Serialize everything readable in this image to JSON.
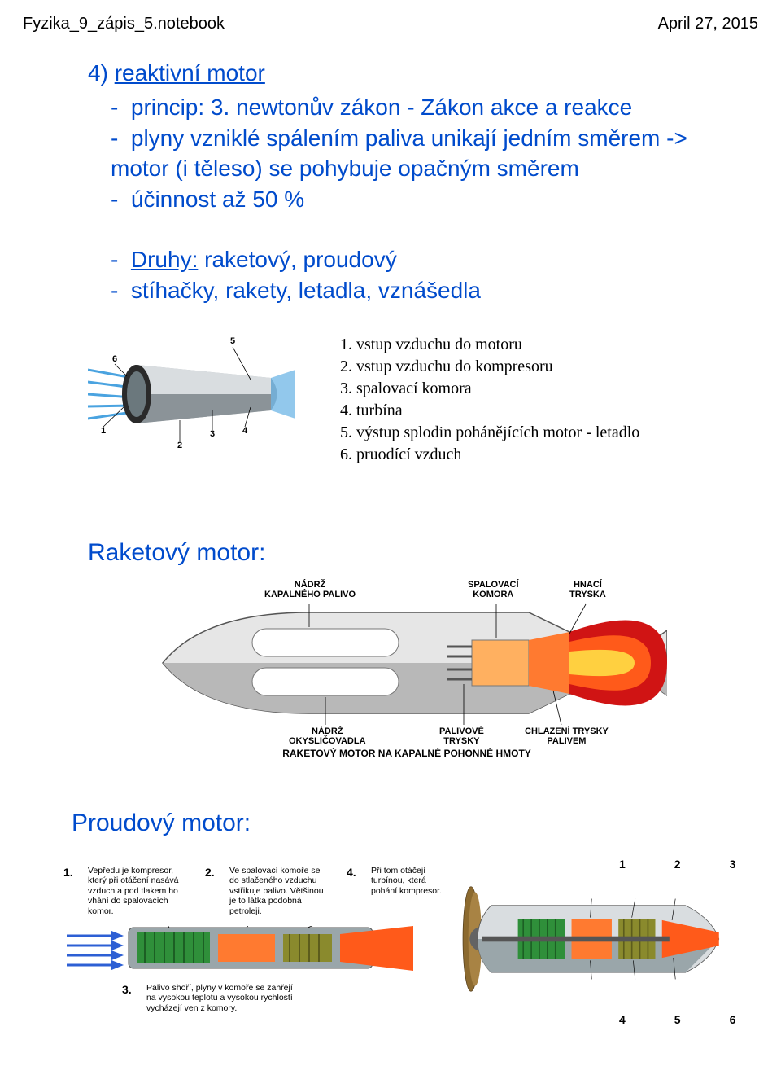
{
  "header": {
    "filename": "Fyzika_9_zápis_5.notebook",
    "date": "April 27, 2015"
  },
  "section": {
    "number": "4)",
    "title": "reaktivní motor",
    "bullets": {
      "b1a": "princip: 3. newtonův zákon - Zákon akce a reakce",
      "b2": "plyny vzniklé spálením paliva unikají jedním směrem -> motor (i těleso) se pohybuje opačným směrem",
      "b3": "účinnost až 50 %"
    },
    "types": {
      "label": "Druhy:",
      "values": "raketový, proudový",
      "examples": "stíhačky, rakety, letadla, vznášedla"
    }
  },
  "engine_legend": {
    "l1": "1. vstup vzduchu do motoru",
    "l2": "2. vstup vzduchu do kompresoru",
    "l3": "3. spalovací komora",
    "l4": "4. turbína",
    "l5": "5. výstup splodin pohánějících motor - letadlo",
    "l6": "6. pruodící vzduch"
  },
  "rocket": {
    "heading": "Raketový motor:",
    "labels": {
      "fuel_tank": "NÁDRŽ\nKAPALNÉHO PALIVO",
      "combustion": "SPALOVACÍ\nKOMORA",
      "nozzle": "HNACÍ\nTRYSKA",
      "oxidizer": "NÁDRŽ\nOKYSLIČOVADLA",
      "fuel_nozzles": "PALIVOVÉ\nTRYSKY",
      "cooling": "CHLAZENÍ TRYSKY\nPALIVEM"
    },
    "caption": "RAKETOVÝ MOTOR NA KAPALNÉ POHONNÉ HMOTY"
  },
  "jet": {
    "heading": "Proudový motor:",
    "steps": {
      "s1": {
        "n": "1.",
        "t": "Vepředu je kompresor, který při otáčení nasává vzduch a pod tlakem ho vhání do spalovacích komor."
      },
      "s2": {
        "n": "2.",
        "t": "Ve spalovací komoře se do stlačeného vzduchu vstřikuje palivo. Většinou je to látka podobná petroleji."
      },
      "s3": {
        "n": "3.",
        "t": "Palivo shoří, plyny v komoře se zahřejí na vysokou teplotu a vysokou rychlostí vycházejí ven z komory."
      },
      "s4": {
        "n": "4.",
        "t": "Při tom otáčejí turbínou, která pohání kompresor."
      }
    },
    "top_nums": {
      "a": "1",
      "b": "2",
      "c": "3"
    },
    "bottom_nums": {
      "a": "4",
      "b": "5",
      "c": "6"
    }
  },
  "colors": {
    "blue": "#004bcc",
    "jet_body": "#9aa6aa",
    "jet_body_dark": "#6b787d",
    "air_blue": "#4aa3e0",
    "rocket_body": "#cfcfcf",
    "rocket_shadow": "#8e8e8e",
    "flame_orange": "#ff5a1a",
    "flame_red": "#d01414",
    "flame_yellow": "#ffd040",
    "green": "#2f8f3a",
    "olive": "#8a8a2d",
    "brown": "#8c6a2f"
  }
}
